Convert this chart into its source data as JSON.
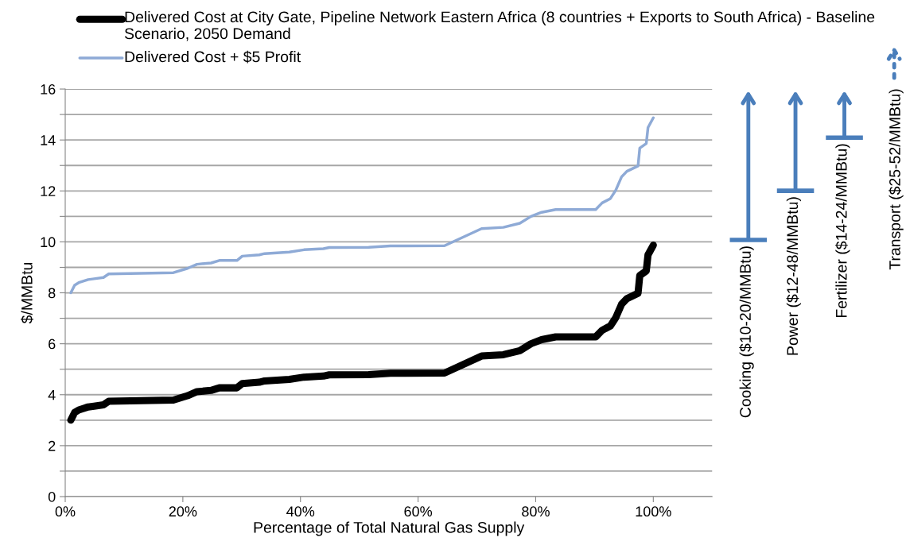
{
  "chart_data": {
    "type": "line",
    "xlabel": "Percentage of Total Natural Gas Supply",
    "ylabel": "$/MMBtu",
    "xlim": [
      0,
      110
    ],
    "xticks": [
      {
        "value": 0,
        "label": "0%"
      },
      {
        "value": 20,
        "label": "20%"
      },
      {
        "value": 40,
        "label": "40%"
      },
      {
        "value": 60,
        "label": "60%"
      },
      {
        "value": 80,
        "label": "80%"
      },
      {
        "value": 100,
        "label": "100%"
      }
    ],
    "ylim": [
      0,
      16
    ],
    "yticks": [
      0,
      {
        "value": 1,
        "label": null
      },
      2,
      {
        "value": 3,
        "label": null
      },
      4,
      {
        "value": 5,
        "label": null
      },
      6,
      {
        "value": 7,
        "label": null
      },
      8,
      {
        "value": 9,
        "label": null
      },
      10,
      {
        "value": 11,
        "label": null
      },
      12,
      {
        "value": 13,
        "label": null
      },
      14,
      {
        "value": 15,
        "label": null
      },
      16
    ],
    "grid": "y",
    "legend": "top",
    "marker": "none",
    "line_style": "solid",
    "x": [
      0.95,
      1.6,
      2.3,
      3.9,
      4.9,
      6.5,
      7.4,
      18.4,
      20.8,
      22.4,
      24.8,
      26.2,
      29.2,
      30.1,
      33,
      33.9,
      38.1,
      40.6,
      43.9,
      44.9,
      51.6,
      55.3,
      64.5,
      70.8,
      74.5,
      77.3,
      79.2,
      81,
      83.4,
      90.2,
      91.3,
      92.7,
      93.6,
      94.6,
      95.5,
      97.4,
      97.7,
      98.8,
      99.1,
      100
    ],
    "series": [
      {
        "name": "Delivered Cost at City Gate, Pipeline Network Eastern Africa (8 countries + Exports to South Africa) - Baseline Scenario, 2050 Demand",
        "color": "#000000",
        "values": [
          3.0,
          3.3,
          3.4,
          3.52,
          3.55,
          3.6,
          3.74,
          3.79,
          3.96,
          4.12,
          4.17,
          4.27,
          4.27,
          4.44,
          4.49,
          4.54,
          4.6,
          4.69,
          4.73,
          4.78,
          4.79,
          4.84,
          4.85,
          5.52,
          5.57,
          5.73,
          6.0,
          6.16,
          6.27,
          6.27,
          6.53,
          6.7,
          7.02,
          7.55,
          7.77,
          7.98,
          8.68,
          8.86,
          9.49,
          9.87
        ]
      },
      {
        "name": "Delivered Cost + $5 Profit",
        "color": "#8eaad6",
        "values": [
          8.0,
          8.3,
          8.4,
          8.52,
          8.55,
          8.6,
          8.74,
          8.79,
          8.96,
          9.12,
          9.17,
          9.27,
          9.27,
          9.44,
          9.49,
          9.54,
          9.6,
          9.69,
          9.73,
          9.78,
          9.79,
          9.84,
          9.85,
          10.52,
          10.57,
          10.73,
          11.0,
          11.16,
          11.27,
          11.27,
          11.53,
          11.7,
          12.02,
          12.55,
          12.77,
          12.98,
          13.68,
          13.86,
          14.49,
          14.87
        ]
      }
    ],
    "annotations": [
      "Cooking ($10-20/MMBtu)",
      "Power ($12-48/MMBtu)",
      "Fertilizer ($14-24/MMBtu)",
      "Transport ($25-52/MMBtu)"
    ]
  }
}
